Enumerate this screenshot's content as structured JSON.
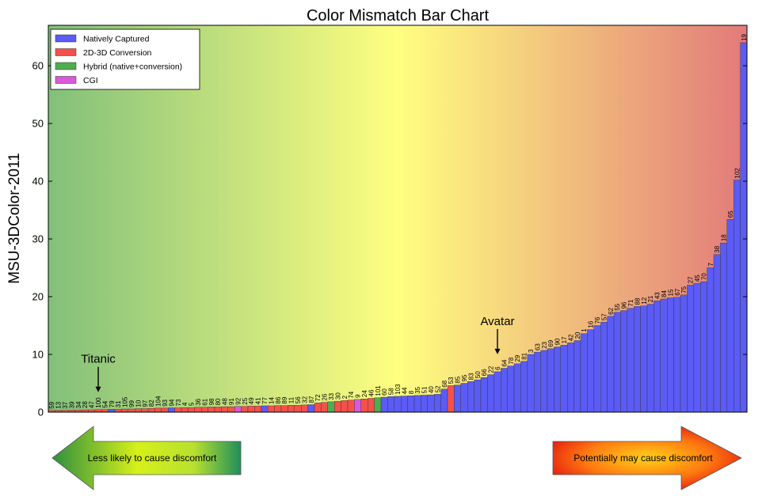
{
  "chart_data": {
    "type": "bar",
    "title": "Color Mismatch Bar Chart",
    "ylabel": "MSU-3DColor-2011",
    "xlabel": "",
    "ylim": [
      0,
      67
    ],
    "yticks": [
      0,
      10,
      20,
      30,
      40,
      50,
      60
    ],
    "legend_position": "top-left",
    "categories_legend": [
      {
        "key": "N",
        "name": "Natively Captured",
        "color": "#5b5bf5"
      },
      {
        "key": "C",
        "name": "2D-3D Conversion",
        "color": "#f5504a"
      },
      {
        "key": "H",
        "name": "Hybrid (native+conversion)",
        "color": "#4fac4f"
      },
      {
        "key": "G",
        "name": "CGI",
        "color": "#d85ad8"
      }
    ],
    "bars": [
      {
        "label": "59",
        "value": 0.3,
        "cat": "C"
      },
      {
        "label": "13",
        "value": 0.3,
        "cat": "C"
      },
      {
        "label": "37",
        "value": 0.3,
        "cat": "C"
      },
      {
        "label": "39",
        "value": 0.35,
        "cat": "C"
      },
      {
        "label": "34",
        "value": 0.35,
        "cat": "C"
      },
      {
        "label": "28",
        "value": 0.4,
        "cat": "C"
      },
      {
        "label": "47",
        "value": 0.4,
        "cat": "C"
      },
      {
        "label": "100",
        "value": 0.45,
        "cat": "C"
      },
      {
        "label": "54",
        "value": 0.45,
        "cat": "C"
      },
      {
        "label": "79",
        "value": 0.5,
        "cat": "N"
      },
      {
        "label": "31",
        "value": 0.5,
        "cat": "C"
      },
      {
        "label": "105",
        "value": 0.55,
        "cat": "C"
      },
      {
        "label": "99",
        "value": 0.55,
        "cat": "C"
      },
      {
        "label": "10",
        "value": 0.6,
        "cat": "C"
      },
      {
        "label": "97",
        "value": 0.6,
        "cat": "C"
      },
      {
        "label": "82",
        "value": 0.65,
        "cat": "C"
      },
      {
        "label": "104",
        "value": 0.7,
        "cat": "C"
      },
      {
        "label": "93",
        "value": 0.7,
        "cat": "C"
      },
      {
        "label": "94",
        "value": 0.75,
        "cat": "N"
      },
      {
        "label": "73",
        "value": 0.75,
        "cat": "C"
      },
      {
        "label": "4",
        "value": 0.8,
        "cat": "C"
      },
      {
        "label": "5",
        "value": 0.8,
        "cat": "C"
      },
      {
        "label": "36",
        "value": 0.85,
        "cat": "C"
      },
      {
        "label": "61",
        "value": 0.85,
        "cat": "C"
      },
      {
        "label": "98",
        "value": 0.9,
        "cat": "C"
      },
      {
        "label": "80",
        "value": 0.9,
        "cat": "C"
      },
      {
        "label": "48",
        "value": 0.95,
        "cat": "C"
      },
      {
        "label": "91",
        "value": 0.95,
        "cat": "C"
      },
      {
        "label": "92",
        "value": 1.0,
        "cat": "G"
      },
      {
        "label": "25",
        "value": 1.0,
        "cat": "C"
      },
      {
        "label": "49",
        "value": 1.05,
        "cat": "C"
      },
      {
        "label": "41",
        "value": 1.05,
        "cat": "C"
      },
      {
        "label": "77",
        "value": 1.1,
        "cat": "N"
      },
      {
        "label": "14",
        "value": 1.1,
        "cat": "C"
      },
      {
        "label": "86",
        "value": 1.15,
        "cat": "C"
      },
      {
        "label": "89",
        "value": 1.15,
        "cat": "C"
      },
      {
        "label": "11",
        "value": 1.2,
        "cat": "C"
      },
      {
        "label": "56",
        "value": 1.2,
        "cat": "C"
      },
      {
        "label": "32",
        "value": 1.25,
        "cat": "C"
      },
      {
        "label": "87",
        "value": 1.3,
        "cat": "N"
      },
      {
        "label": "72",
        "value": 1.6,
        "cat": "C"
      },
      {
        "label": "26",
        "value": 1.7,
        "cat": "C"
      },
      {
        "label": "33",
        "value": 1.8,
        "cat": "H"
      },
      {
        "label": "30",
        "value": 1.9,
        "cat": "C"
      },
      {
        "label": "2",
        "value": 2.0,
        "cat": "C"
      },
      {
        "label": "74",
        "value": 2.1,
        "cat": "C"
      },
      {
        "label": "9",
        "value": 2.2,
        "cat": "G"
      },
      {
        "label": "24",
        "value": 2.3,
        "cat": "C"
      },
      {
        "label": "46",
        "value": 2.4,
        "cat": "C"
      },
      {
        "label": "101",
        "value": 2.5,
        "cat": "H"
      },
      {
        "label": "60",
        "value": 2.6,
        "cat": "N"
      },
      {
        "label": "58",
        "value": 2.7,
        "cat": "N"
      },
      {
        "label": "103",
        "value": 2.75,
        "cat": "N"
      },
      {
        "label": "44",
        "value": 2.8,
        "cat": "N"
      },
      {
        "label": "8",
        "value": 2.85,
        "cat": "N"
      },
      {
        "label": "35",
        "value": 2.9,
        "cat": "N"
      },
      {
        "label": "51",
        "value": 2.95,
        "cat": "N"
      },
      {
        "label": "40",
        "value": 3.0,
        "cat": "N"
      },
      {
        "label": "52",
        "value": 3.1,
        "cat": "N"
      },
      {
        "label": "68",
        "value": 4.0,
        "cat": "N"
      },
      {
        "label": "53",
        "value": 4.6,
        "cat": "C"
      },
      {
        "label": "85",
        "value": 4.7,
        "cat": "N"
      },
      {
        "label": "95",
        "value": 5.0,
        "cat": "N"
      },
      {
        "label": "83",
        "value": 5.3,
        "cat": "N"
      },
      {
        "label": "50",
        "value": 5.6,
        "cat": "N"
      },
      {
        "label": "66",
        "value": 6.0,
        "cat": "N"
      },
      {
        "label": "22",
        "value": 6.5,
        "cat": "N"
      },
      {
        "label": "6",
        "value": 7.0,
        "cat": "N"
      },
      {
        "label": "64",
        "value": 7.6,
        "cat": "N"
      },
      {
        "label": "78",
        "value": 8.0,
        "cat": "N"
      },
      {
        "label": "29",
        "value": 8.4,
        "cat": "N"
      },
      {
        "label": "81",
        "value": 8.8,
        "cat": "N"
      },
      {
        "label": "3",
        "value": 10.0,
        "cat": "N"
      },
      {
        "label": "63",
        "value": 10.4,
        "cat": "N"
      },
      {
        "label": "23",
        "value": 10.7,
        "cat": "N"
      },
      {
        "label": "69",
        "value": 11.0,
        "cat": "N"
      },
      {
        "label": "90",
        "value": 11.3,
        "cat": "N"
      },
      {
        "label": "17",
        "value": 11.6,
        "cat": "N"
      },
      {
        "label": "42",
        "value": 12.0,
        "cat": "N"
      },
      {
        "label": "20",
        "value": 12.4,
        "cat": "N"
      },
      {
        "label": "1",
        "value": 13.6,
        "cat": "N"
      },
      {
        "label": "16",
        "value": 14.3,
        "cat": "N"
      },
      {
        "label": "76",
        "value": 15.0,
        "cat": "N"
      },
      {
        "label": "57",
        "value": 15.6,
        "cat": "N"
      },
      {
        "label": "62",
        "value": 16.6,
        "cat": "N"
      },
      {
        "label": "55",
        "value": 17.3,
        "cat": "N"
      },
      {
        "label": "96",
        "value": 17.6,
        "cat": "N"
      },
      {
        "label": "71",
        "value": 18.0,
        "cat": "N"
      },
      {
        "label": "88",
        "value": 18.3,
        "cat": "N"
      },
      {
        "label": "12",
        "value": 18.4,
        "cat": "N"
      },
      {
        "label": "21",
        "value": 18.7,
        "cat": "N"
      },
      {
        "label": "43",
        "value": 19.3,
        "cat": "N"
      },
      {
        "label": "84",
        "value": 19.6,
        "cat": "N"
      },
      {
        "label": "15",
        "value": 19.8,
        "cat": "N"
      },
      {
        "label": "67",
        "value": 19.9,
        "cat": "N"
      },
      {
        "label": "75",
        "value": 20.3,
        "cat": "N"
      },
      {
        "label": "27",
        "value": 22.0,
        "cat": "N"
      },
      {
        "label": "45",
        "value": 22.3,
        "cat": "N"
      },
      {
        "label": "70",
        "value": 22.6,
        "cat": "N"
      },
      {
        "label": "7",
        "value": 25.0,
        "cat": "N"
      },
      {
        "label": "38",
        "value": 27.3,
        "cat": "N"
      },
      {
        "label": "18",
        "value": 29.3,
        "cat": "N"
      },
      {
        "label": "65",
        "value": 33.4,
        "cat": "N"
      },
      {
        "label": "102",
        "value": 40.2,
        "cat": "N"
      },
      {
        "label": "19",
        "value": 64.0,
        "cat": "N"
      }
    ],
    "annotations": [
      {
        "text": "Titanic",
        "bar_label": "100"
      },
      {
        "text": "Avatar",
        "bar_label": "6"
      }
    ]
  },
  "arrows": {
    "left_label": "Less likely to cause discomfort",
    "right_label": "Potentially may cause discomfort"
  },
  "colors": {
    "bg_left": "#82c07a",
    "bg_mid": "#ffff80",
    "bg_right": "#e27a7a",
    "bar_edge": "#333333"
  }
}
